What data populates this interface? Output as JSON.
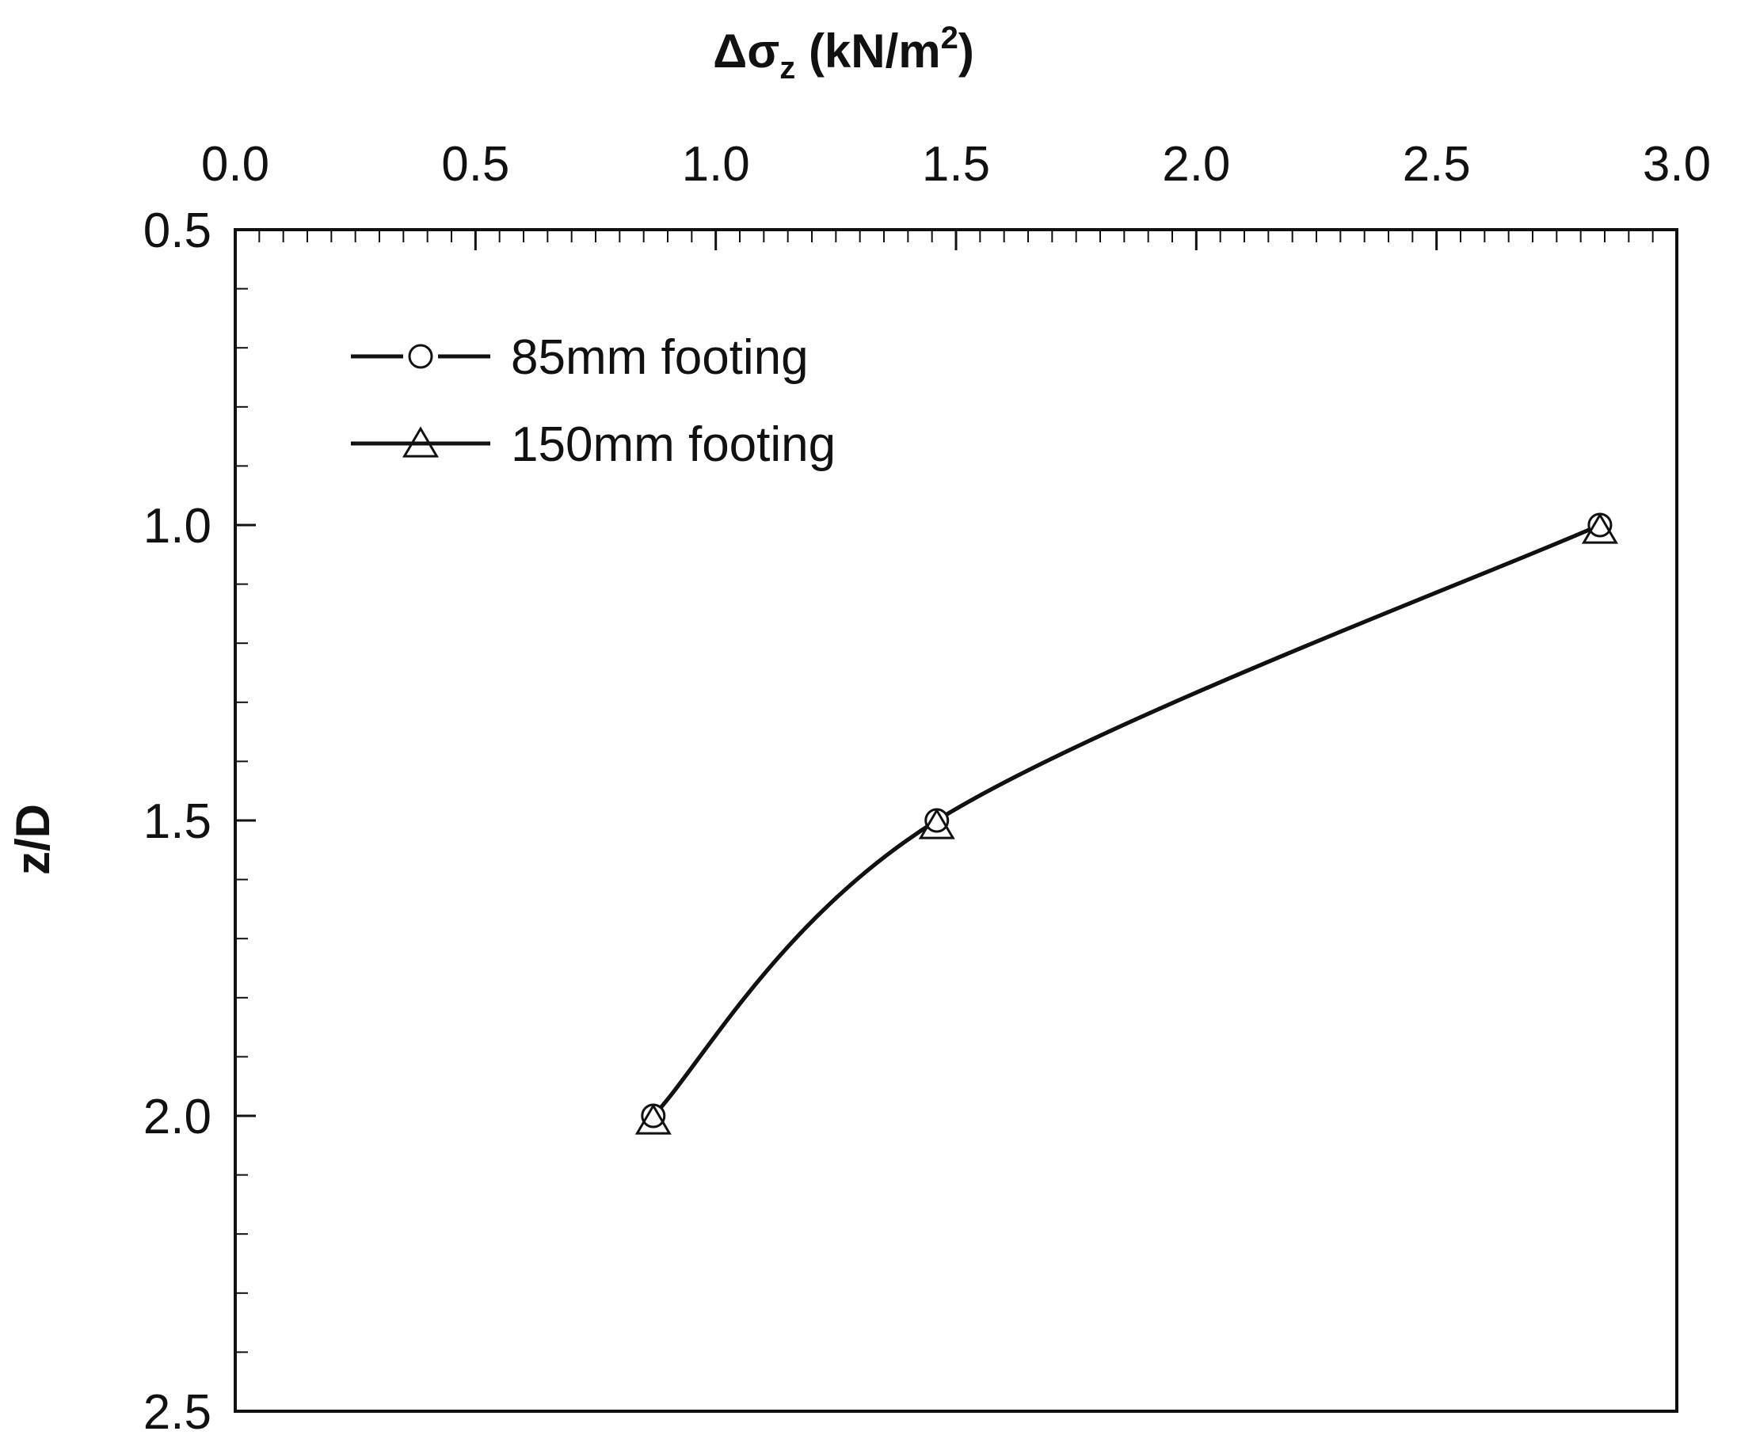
{
  "chart_data": {
    "type": "line",
    "title": "",
    "xlabel": {
      "prefix": "Δσ",
      "sub": "z",
      "middle": " (kN/m",
      "sup": "2",
      "suffix": ")"
    },
    "ylabel": "z/D",
    "x_axis_position": "top",
    "y_axis_inverted": true,
    "xlim": [
      0.0,
      3.0
    ],
    "ylim": [
      0.5,
      2.5
    ],
    "x_ticks": [
      "0.0",
      "0.5",
      "1.0",
      "1.5",
      "2.0",
      "2.5",
      "3.0"
    ],
    "y_ticks": [
      "0.5",
      "1.0",
      "1.5",
      "2.0",
      "2.5"
    ],
    "x_tick_values": [
      0.0,
      0.5,
      1.0,
      1.5,
      2.0,
      2.5,
      3.0
    ],
    "y_tick_values": [
      0.5,
      1.0,
      1.5,
      2.0,
      2.5
    ],
    "grid": false,
    "legend_position": "top-left",
    "series": [
      {
        "name": "85mm footing",
        "marker": "circle",
        "color": "#111111",
        "x": [
          0.87,
          1.46,
          2.84
        ],
        "y": [
          2.0,
          1.5,
          1.0
        ]
      },
      {
        "name": "150mm footing",
        "marker": "triangle",
        "color": "#111111",
        "x": [
          0.87,
          1.46,
          2.84
        ],
        "y": [
          2.0,
          1.5,
          1.0
        ]
      }
    ]
  }
}
